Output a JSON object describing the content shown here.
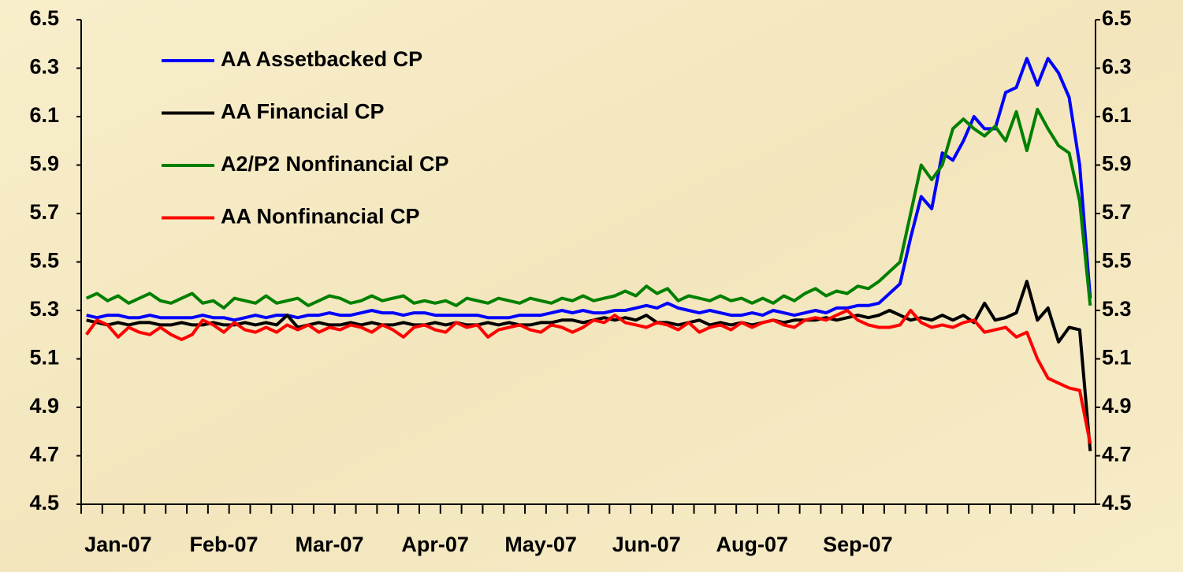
{
  "chart_data": {
    "type": "line",
    "categories": [
      null,
      null,
      null,
      "Jan-07",
      null,
      null,
      null,
      null,
      null,
      null,
      null,
      null,
      null,
      "Feb-07",
      null,
      null,
      null,
      null,
      null,
      null,
      null,
      null,
      null,
      "Mar-07",
      null,
      null,
      null,
      null,
      null,
      null,
      null,
      null,
      null,
      "Apr-07",
      null,
      null,
      null,
      null,
      null,
      null,
      null,
      null,
      null,
      "May-07",
      null,
      null,
      null,
      null,
      null,
      null,
      null,
      null,
      null,
      "Jun-07",
      null,
      null,
      null,
      null,
      null,
      null,
      null,
      null,
      null,
      "Aug-07",
      null,
      null,
      null,
      null,
      null,
      null,
      null,
      null,
      null,
      "Sep-07",
      null,
      null,
      null,
      null,
      null,
      null,
      null,
      null,
      null,
      null,
      null,
      null,
      null,
      null,
      null,
      null,
      null,
      null,
      null,
      null,
      null,
      null
    ],
    "series": [
      {
        "name": "AA Assetbacked CP",
        "color": "#0000ff",
        "values": [
          5.28,
          5.27,
          5.28,
          5.28,
          5.27,
          5.27,
          5.28,
          5.27,
          5.27,
          5.27,
          5.27,
          5.28,
          5.27,
          5.27,
          5.26,
          5.27,
          5.28,
          5.27,
          5.28,
          5.28,
          5.27,
          5.28,
          5.28,
          5.29,
          5.28,
          5.28,
          5.29,
          5.3,
          5.29,
          5.29,
          5.28,
          5.29,
          5.29,
          5.28,
          5.28,
          5.28,
          5.28,
          5.28,
          5.27,
          5.27,
          5.27,
          5.28,
          5.28,
          5.28,
          5.29,
          5.3,
          5.29,
          5.3,
          5.29,
          5.29,
          5.3,
          5.3,
          5.31,
          5.32,
          5.31,
          5.33,
          5.31,
          5.3,
          5.29,
          5.3,
          5.29,
          5.28,
          5.28,
          5.29,
          5.28,
          5.3,
          5.29,
          5.28,
          5.29,
          5.3,
          5.29,
          5.31,
          5.31,
          5.32,
          5.32,
          5.33,
          5.37,
          5.41,
          5.6,
          5.77,
          5.72,
          5.95,
          5.92,
          6.0,
          6.1,
          6.05,
          6.05,
          6.2,
          6.22,
          6.34,
          6.23,
          6.34,
          6.28,
          6.18,
          5.9,
          5.35
        ]
      },
      {
        "name": "AA Financial CP",
        "color": "#000000",
        "values": [
          5.26,
          5.25,
          5.24,
          5.25,
          5.24,
          5.25,
          5.25,
          5.24,
          5.24,
          5.25,
          5.24,
          5.24,
          5.25,
          5.24,
          5.24,
          5.25,
          5.24,
          5.25,
          5.24,
          5.28,
          5.23,
          5.24,
          5.25,
          5.24,
          5.24,
          5.25,
          5.24,
          5.25,
          5.24,
          5.24,
          5.25,
          5.24,
          5.24,
          5.25,
          5.24,
          5.25,
          5.24,
          5.24,
          5.25,
          5.24,
          5.25,
          5.24,
          5.24,
          5.25,
          5.25,
          5.26,
          5.26,
          5.25,
          5.26,
          5.27,
          5.26,
          5.27,
          5.26,
          5.28,
          5.25,
          5.25,
          5.24,
          5.25,
          5.26,
          5.24,
          5.25,
          5.24,
          5.25,
          5.24,
          5.25,
          5.26,
          5.25,
          5.26,
          5.26,
          5.26,
          5.27,
          5.26,
          5.27,
          5.28,
          5.27,
          5.28,
          5.3,
          5.28,
          5.26,
          5.27,
          5.26,
          5.28,
          5.26,
          5.28,
          5.25,
          5.33,
          5.26,
          5.27,
          5.29,
          5.42,
          5.26,
          5.31,
          5.17,
          5.23,
          5.22,
          4.72
        ]
      },
      {
        "name": "A2/P2 Nonfinancial CP",
        "color": "#008000",
        "values": [
          5.35,
          5.37,
          5.34,
          5.36,
          5.33,
          5.35,
          5.37,
          5.34,
          5.33,
          5.35,
          5.37,
          5.33,
          5.34,
          5.31,
          5.35,
          5.34,
          5.33,
          5.36,
          5.33,
          5.34,
          5.35,
          5.32,
          5.34,
          5.36,
          5.35,
          5.33,
          5.34,
          5.36,
          5.34,
          5.35,
          5.36,
          5.33,
          5.34,
          5.33,
          5.34,
          5.32,
          5.35,
          5.34,
          5.33,
          5.35,
          5.34,
          5.33,
          5.35,
          5.34,
          5.33,
          5.35,
          5.34,
          5.36,
          5.34,
          5.35,
          5.36,
          5.38,
          5.36,
          5.4,
          5.37,
          5.39,
          5.34,
          5.36,
          5.35,
          5.34,
          5.36,
          5.34,
          5.35,
          5.33,
          5.35,
          5.33,
          5.36,
          5.34,
          5.37,
          5.39,
          5.36,
          5.38,
          5.37,
          5.4,
          5.39,
          5.42,
          5.46,
          5.5,
          5.7,
          5.9,
          5.84,
          5.9,
          6.05,
          6.09,
          6.05,
          6.02,
          6.06,
          6.0,
          6.12,
          5.96,
          6.13,
          6.05,
          5.98,
          5.95,
          5.75,
          5.32
        ]
      },
      {
        "name": "AA Nonfinancial CP",
        "color": "#ff0000",
        "values": [
          5.2,
          5.26,
          5.24,
          5.19,
          5.23,
          5.21,
          5.2,
          5.23,
          5.2,
          5.18,
          5.2,
          5.26,
          5.24,
          5.21,
          5.25,
          5.22,
          5.21,
          5.23,
          5.21,
          5.24,
          5.22,
          5.24,
          5.21,
          5.23,
          5.22,
          5.24,
          5.23,
          5.21,
          5.24,
          5.22,
          5.19,
          5.23,
          5.24,
          5.22,
          5.21,
          5.25,
          5.23,
          5.24,
          5.19,
          5.22,
          5.23,
          5.24,
          5.22,
          5.21,
          5.24,
          5.23,
          5.21,
          5.23,
          5.26,
          5.25,
          5.28,
          5.25,
          5.24,
          5.23,
          5.25,
          5.24,
          5.22,
          5.25,
          5.21,
          5.23,
          5.24,
          5.22,
          5.25,
          5.23,
          5.25,
          5.26,
          5.24,
          5.23,
          5.26,
          5.27,
          5.26,
          5.28,
          5.3,
          5.26,
          5.24,
          5.23,
          5.23,
          5.24,
          5.3,
          5.25,
          5.23,
          5.24,
          5.23,
          5.25,
          5.26,
          5.21,
          5.22,
          5.23,
          5.19,
          5.21,
          5.1,
          5.02,
          5.0,
          4.98,
          4.97,
          4.75
        ]
      }
    ],
    "ylim": [
      4.5,
      6.5
    ],
    "yticks": [
      4.5,
      4.7,
      4.9,
      5.1,
      5.3,
      5.5,
      5.7,
      5.9,
      6.1,
      6.3,
      6.5
    ],
    "y2lim": [
      4.5,
      6.5
    ],
    "y2ticks": [
      4.5,
      4.7,
      4.9,
      5.1,
      5.3,
      5.5,
      5.7,
      5.9,
      6.1,
      6.3,
      6.5
    ],
    "grid": false,
    "legend": "upper left"
  }
}
